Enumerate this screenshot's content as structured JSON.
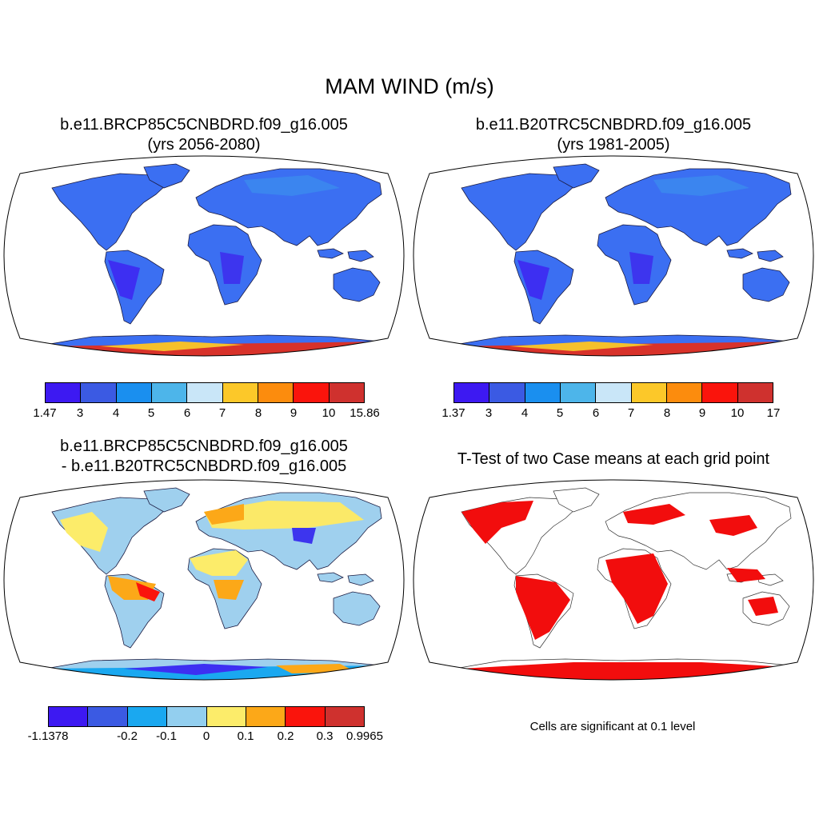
{
  "figure": {
    "title": "MAM WIND (m/s)"
  },
  "panels": [
    {
      "id": "future",
      "title_lines": [
        "b.e11.BRCP85C5CNBDRD.f09_g16.005",
        "(yrs 2056-2080)"
      ],
      "colorbar": {
        "colors": [
          "#3d19f2",
          "#3b5ae3",
          "#1a8fef",
          "#4db5ea",
          "#c9e6f8",
          "#fcc829",
          "#fc8c0d",
          "#fa140c",
          "#cf312e"
        ],
        "labels": [
          "1.47",
          "3",
          "4",
          "5",
          "6",
          "7",
          "8",
          "9",
          "10",
          "15.86"
        ]
      }
    },
    {
      "id": "historical",
      "title_lines": [
        "b.e11.B20TRC5CNBDRD.f09_g16.005",
        "(yrs 1981-2005)"
      ],
      "colorbar": {
        "colors": [
          "#3d19f2",
          "#3b5ae3",
          "#1a8fef",
          "#4db5ea",
          "#c9e6f8",
          "#fcc829",
          "#fc8c0d",
          "#fa140c",
          "#cf312e"
        ],
        "labels": [
          "1.37",
          "3",
          "4",
          "5",
          "6",
          "7",
          "8",
          "9",
          "10",
          "17"
        ]
      }
    },
    {
      "id": "difference",
      "title_lines": [
        "b.e11.BRCP85C5CNBDRD.f09_g16.005",
        "- b.e11.B20TRC5CNBDRD.f09_g16.005"
      ],
      "colorbar": {
        "colors": [
          "#3d19f2",
          "#3b5ae3",
          "#1aa8f0",
          "#93cfef",
          "#fcec6a",
          "#fca818",
          "#fa140c",
          "#cf312e"
        ],
        "labels": [
          "-1.1378",
          "-0.2",
          "-0.1",
          "0",
          "0.1",
          "0.2",
          "0.3",
          "0.9965"
        ]
      }
    },
    {
      "id": "ttest",
      "title_lines": [
        "T-Test of two Case means at each grid point"
      ],
      "note": "Cells are significant at 0.1 level"
    }
  ]
}
